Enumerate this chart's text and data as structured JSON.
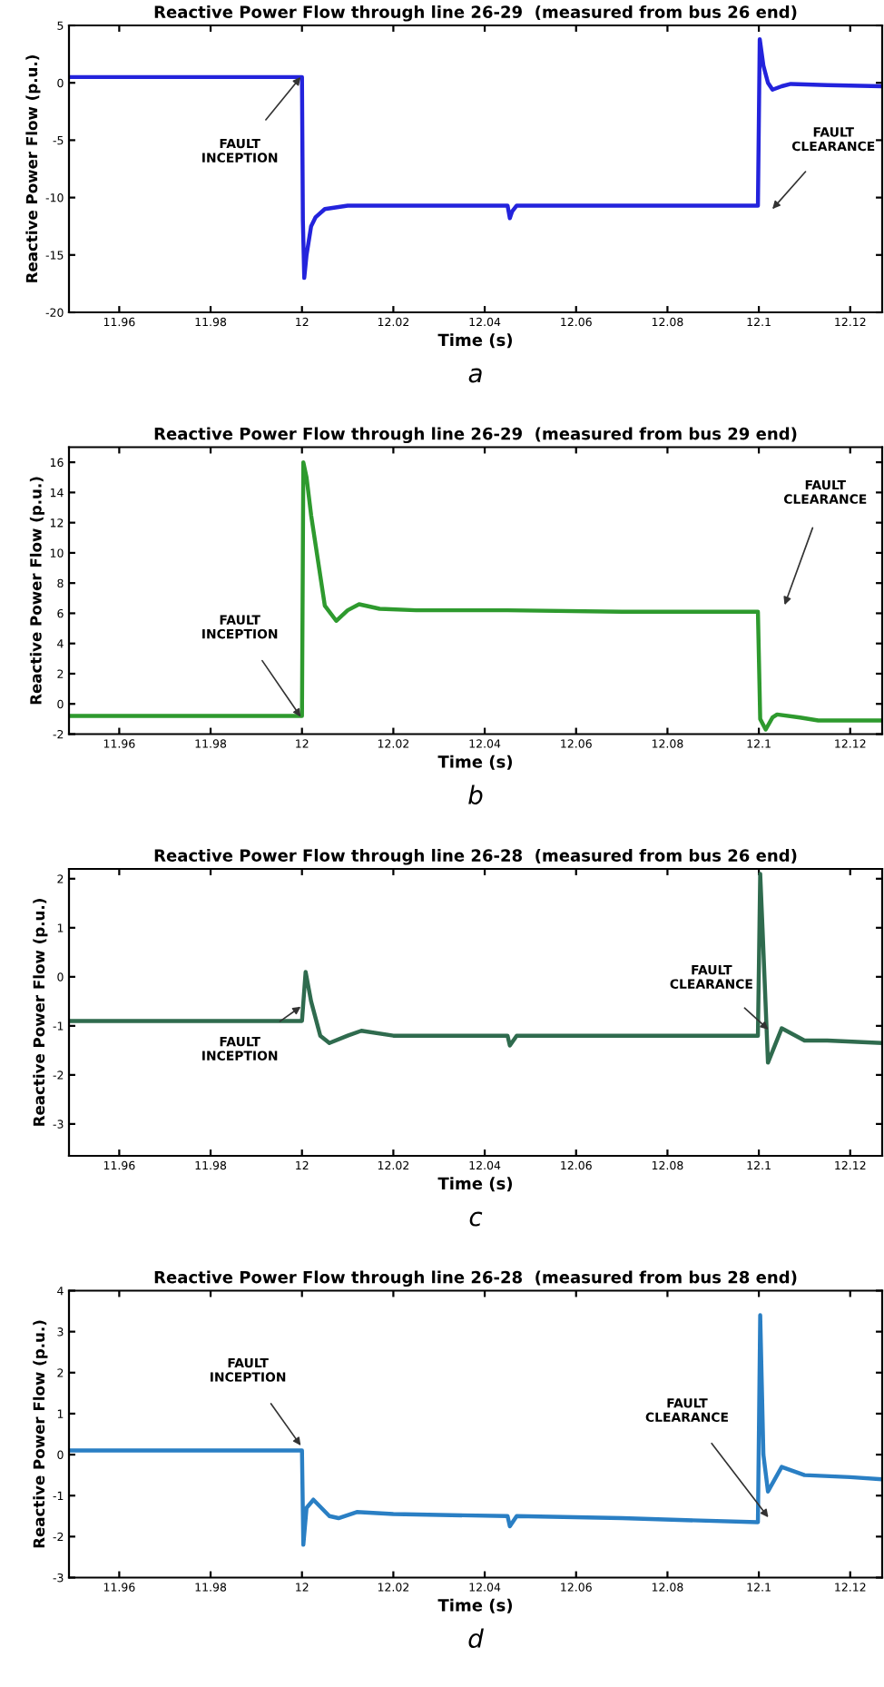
{
  "chart_data": [
    {
      "type": "line",
      "title": "Reactive Power Flow through line 26-29  (measured from bus 26 end)",
      "xlabel": "Time (s)",
      "ylabel": "Reactive Power Flow (p.u.)",
      "xlim": [
        11.949,
        12.127
      ],
      "xticks": [
        11.96,
        11.98,
        12,
        12.02,
        12.04,
        12.06,
        12.08,
        12.1,
        12.12
      ],
      "ylim": [
        -20,
        5
      ],
      "yticks": [
        -20,
        -15,
        -10,
        -5,
        0,
        5
      ],
      "grid": false,
      "legend": false,
      "series": [
        {
          "color": "#2323dc",
          "x": [
            11.949,
            12.0,
            12.0002,
            12.0005,
            12.001,
            12.002,
            12.003,
            12.005,
            12.01,
            12.03,
            12.045,
            12.0455,
            12.046,
            12.047,
            12.07,
            12.0998,
            12.1002,
            12.101,
            12.102,
            12.103,
            12.105,
            12.107,
            12.115,
            12.127
          ],
          "values": [
            0.5,
            0.5,
            -12,
            -17,
            -15,
            -12.5,
            -11.7,
            -11,
            -10.7,
            -10.7,
            -10.7,
            -11.8,
            -11.2,
            -10.7,
            -10.7,
            -10.7,
            3.8,
            1.5,
            0,
            -0.6,
            -0.3,
            -0.1,
            -0.2,
            -0.3
          ]
        }
      ],
      "annotations": [
        "FAULT\nINCEPTION",
        "FAULT\nCLEARANCE",
        "a"
      ]
    },
    {
      "type": "line",
      "title": "Reactive Power Flow through line 26-29  (measured from bus 29 end)",
      "xlabel": "Time (s)",
      "ylabel": "Reactive Power Flow (p.u.)",
      "xlim": [
        11.949,
        12.127
      ],
      "xticks": [
        11.96,
        11.98,
        12,
        12.02,
        12.04,
        12.06,
        12.08,
        12.1,
        12.12
      ],
      "ylim": [
        -2,
        17
      ],
      "yticks": [
        -2,
        0,
        2,
        4,
        6,
        8,
        10,
        12,
        14,
        16
      ],
      "grid": false,
      "legend": false,
      "series": [
        {
          "color": "#2e9a2e",
          "x": [
            11.949,
            12.0,
            12.0003,
            12.001,
            12.002,
            12.003,
            12.005,
            12.0075,
            12.01,
            12.0125,
            12.017,
            12.025,
            12.045,
            12.07,
            12.0998,
            12.1003,
            12.1015,
            12.103,
            12.104,
            12.109,
            12.113,
            12.127
          ],
          "values": [
            -0.8,
            -0.8,
            16,
            15,
            12.5,
            10.5,
            6.5,
            5.5,
            6.2,
            6.6,
            6.3,
            6.2,
            6.2,
            6.1,
            6.1,
            -1,
            -1.7,
            -0.9,
            -0.7,
            -0.9,
            -1.1,
            -1.1
          ]
        }
      ],
      "annotations": [
        "FAULT\nINCEPTION",
        "FAULT\nCLEARANCE",
        "b"
      ]
    },
    {
      "type": "line",
      "title": "Reactive Power Flow through line 26-28  (measured from bus 26 end)",
      "xlabel": "Time (s)",
      "ylabel": "Reactive Power Flow (p.u.)",
      "xlim": [
        11.949,
        12.127
      ],
      "xticks": [
        11.96,
        11.98,
        12,
        12.02,
        12.04,
        12.06,
        12.08,
        12.1,
        12.12
      ],
      "ylim": [
        -3.65,
        2.2
      ],
      "yticks": [
        -3,
        -2,
        -1,
        0,
        1,
        2
      ],
      "grid": false,
      "legend": false,
      "series": [
        {
          "color": "#2f6b4e",
          "x": [
            11.949,
            12.0,
            12.0008,
            12.002,
            12.004,
            12.006,
            12.01,
            12.013,
            12.02,
            12.045,
            12.0455,
            12.047,
            12.07,
            12.0998,
            12.1003,
            12.1008,
            12.102,
            12.105,
            12.11,
            12.115,
            12.127
          ],
          "values": [
            -0.9,
            -0.9,
            0.1,
            -0.5,
            -1.2,
            -1.35,
            -1.2,
            -1.1,
            -1.2,
            -1.2,
            -1.4,
            -1.2,
            -1.2,
            -1.2,
            2.1,
            1.0,
            -1.75,
            -1.05,
            -1.3,
            -1.3,
            -1.35
          ]
        }
      ],
      "annotations": [
        "FAULT\nINCEPTION",
        "FAULT\nCLEARANCE",
        "c"
      ]
    },
    {
      "type": "line",
      "title": "Reactive Power Flow through line 26-28  (measured from bus 28 end)",
      "xlabel": "Time (s)",
      "ylabel": "Reactive Power Flow (p.u.)",
      "xlim": [
        11.949,
        12.127
      ],
      "xticks": [
        11.96,
        11.98,
        12,
        12.02,
        12.04,
        12.06,
        12.08,
        12.1,
        12.12
      ],
      "ylim": [
        -3,
        4
      ],
      "yticks": [
        -3,
        -2,
        -1,
        0,
        1,
        2,
        3,
        4
      ],
      "grid": false,
      "legend": false,
      "series": [
        {
          "color": "#2a7fc4",
          "x": [
            11.949,
            12.0,
            12.0003,
            12.001,
            12.0025,
            12.006,
            12.008,
            12.012,
            12.02,
            12.045,
            12.0455,
            12.047,
            12.07,
            12.0998,
            12.1003,
            12.101,
            12.102,
            12.105,
            12.11,
            12.12,
            12.127
          ],
          "values": [
            0.1,
            0.1,
            -2.2,
            -1.3,
            -1.1,
            -1.5,
            -1.55,
            -1.4,
            -1.45,
            -1.5,
            -1.75,
            -1.5,
            -1.55,
            -1.65,
            3.4,
            0,
            -0.9,
            -0.3,
            -0.5,
            -0.55,
            -0.6
          ]
        }
      ],
      "annotations": [
        "FAULT\nINCEPTION",
        "FAULT\nCLEARANCE",
        "d"
      ]
    }
  ]
}
